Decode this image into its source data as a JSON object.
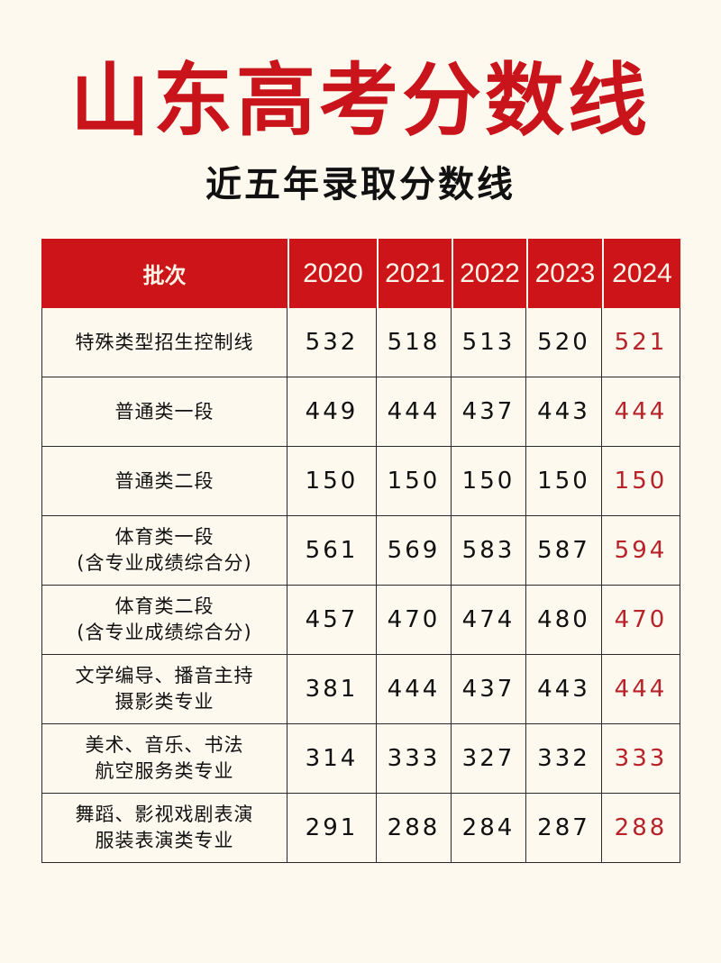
{
  "title": "山东高考分数线",
  "subtitle": "近五年录取分数线",
  "colors": {
    "accent": "#cc1419",
    "background": "#fdf9ef",
    "highlight_text": "#b8232a"
  },
  "table": {
    "headers": [
      "批次",
      "2020",
      "2021",
      "2022",
      "2023",
      "2024"
    ],
    "rows": [
      {
        "label": [
          "特殊类型招生控制线"
        ],
        "values": [
          "532",
          "518",
          "513",
          "520",
          "521"
        ]
      },
      {
        "label": [
          "普通类一段"
        ],
        "values": [
          "449",
          "444",
          "437",
          "443",
          "444"
        ]
      },
      {
        "label": [
          "普通类二段"
        ],
        "values": [
          "150",
          "150",
          "150",
          "150",
          "150"
        ]
      },
      {
        "label": [
          "体育类一段",
          "(含专业成绩综合分)"
        ],
        "values": [
          "561",
          "569",
          "583",
          "587",
          "594"
        ]
      },
      {
        "label": [
          "体育类二段",
          "(含专业成绩综合分)"
        ],
        "values": [
          "457",
          "470",
          "474",
          "480",
          "470"
        ]
      },
      {
        "label": [
          "文学编导、播音主持",
          "摄影类专业"
        ],
        "values": [
          "381",
          "444",
          "437",
          "443",
          "444"
        ]
      },
      {
        "label": [
          "美术、音乐、书法",
          "航空服务类专业"
        ],
        "values": [
          "314",
          "333",
          "327",
          "332",
          "333"
        ]
      },
      {
        "label": [
          "舞蹈、影视戏剧表演",
          "服装表演类专业"
        ],
        "values": [
          "291",
          "288",
          "284",
          "287",
          "288"
        ]
      }
    ]
  }
}
